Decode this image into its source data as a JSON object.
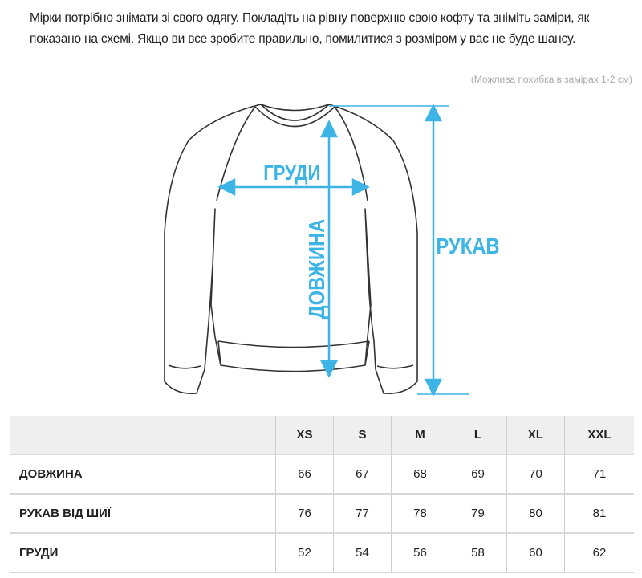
{
  "intro": "Мірки потрібно знімати зі свого одягу. Покладіть на рівну поверхню свою кофту та зніміть заміри, як показано на схемі. Якщо ви все зробите правильно, помилитися з розміром у вас не буде шансу.",
  "note": "(Можлива похибка в замірах 1-2 см)",
  "diagram": {
    "accent_color": "#3cb4e6",
    "labels": {
      "chest": "ГРУДИ",
      "length": "ДОВЖИНА",
      "sleeve": "РУКАВ"
    }
  },
  "table": {
    "sizes": [
      "XS",
      "S",
      "M",
      "L",
      "XL",
      "XXL"
    ],
    "rows": [
      {
        "label": "ДОВЖИНА",
        "values": [
          "66",
          "67",
          "68",
          "69",
          "70",
          "71"
        ]
      },
      {
        "label": "РУКАВ ВІД ШИЇ",
        "values": [
          "76",
          "77",
          "78",
          "79",
          "80",
          "81"
        ]
      },
      {
        "label": "ГРУДИ",
        "values": [
          "52",
          "54",
          "56",
          "58",
          "60",
          "62"
        ]
      }
    ]
  }
}
